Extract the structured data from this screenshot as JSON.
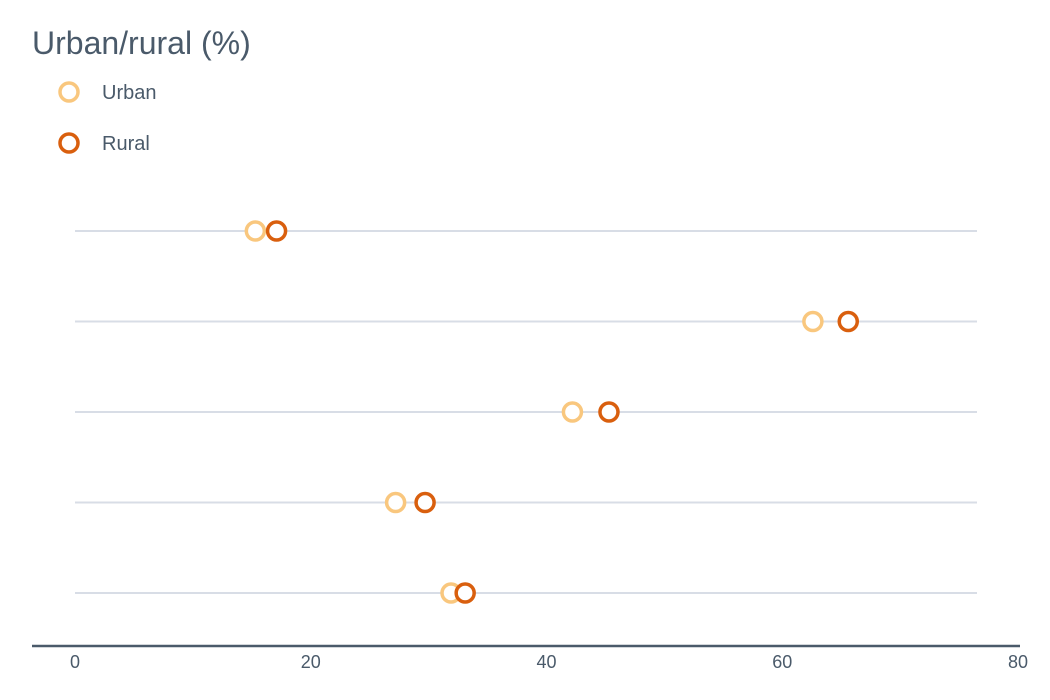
{
  "chart_data": {
    "type": "scatter",
    "title": "Urban/rural (%)",
    "xlabel": "",
    "ylabel": "",
    "xlim": [
      0,
      80
    ],
    "xticks": [
      "0",
      "20",
      "40",
      "60",
      "80"
    ],
    "grid": true,
    "legend_position": "top-left",
    "rows": 5,
    "series": [
      {
        "name": "Urban",
        "color": "#f9c77e",
        "values": [
          15.3,
          62.6,
          42.2,
          27.2,
          31.9
        ]
      },
      {
        "name": "Rural",
        "color": "#d95f0e",
        "values": [
          17.1,
          65.6,
          45.3,
          29.7,
          33.1
        ]
      }
    ]
  }
}
